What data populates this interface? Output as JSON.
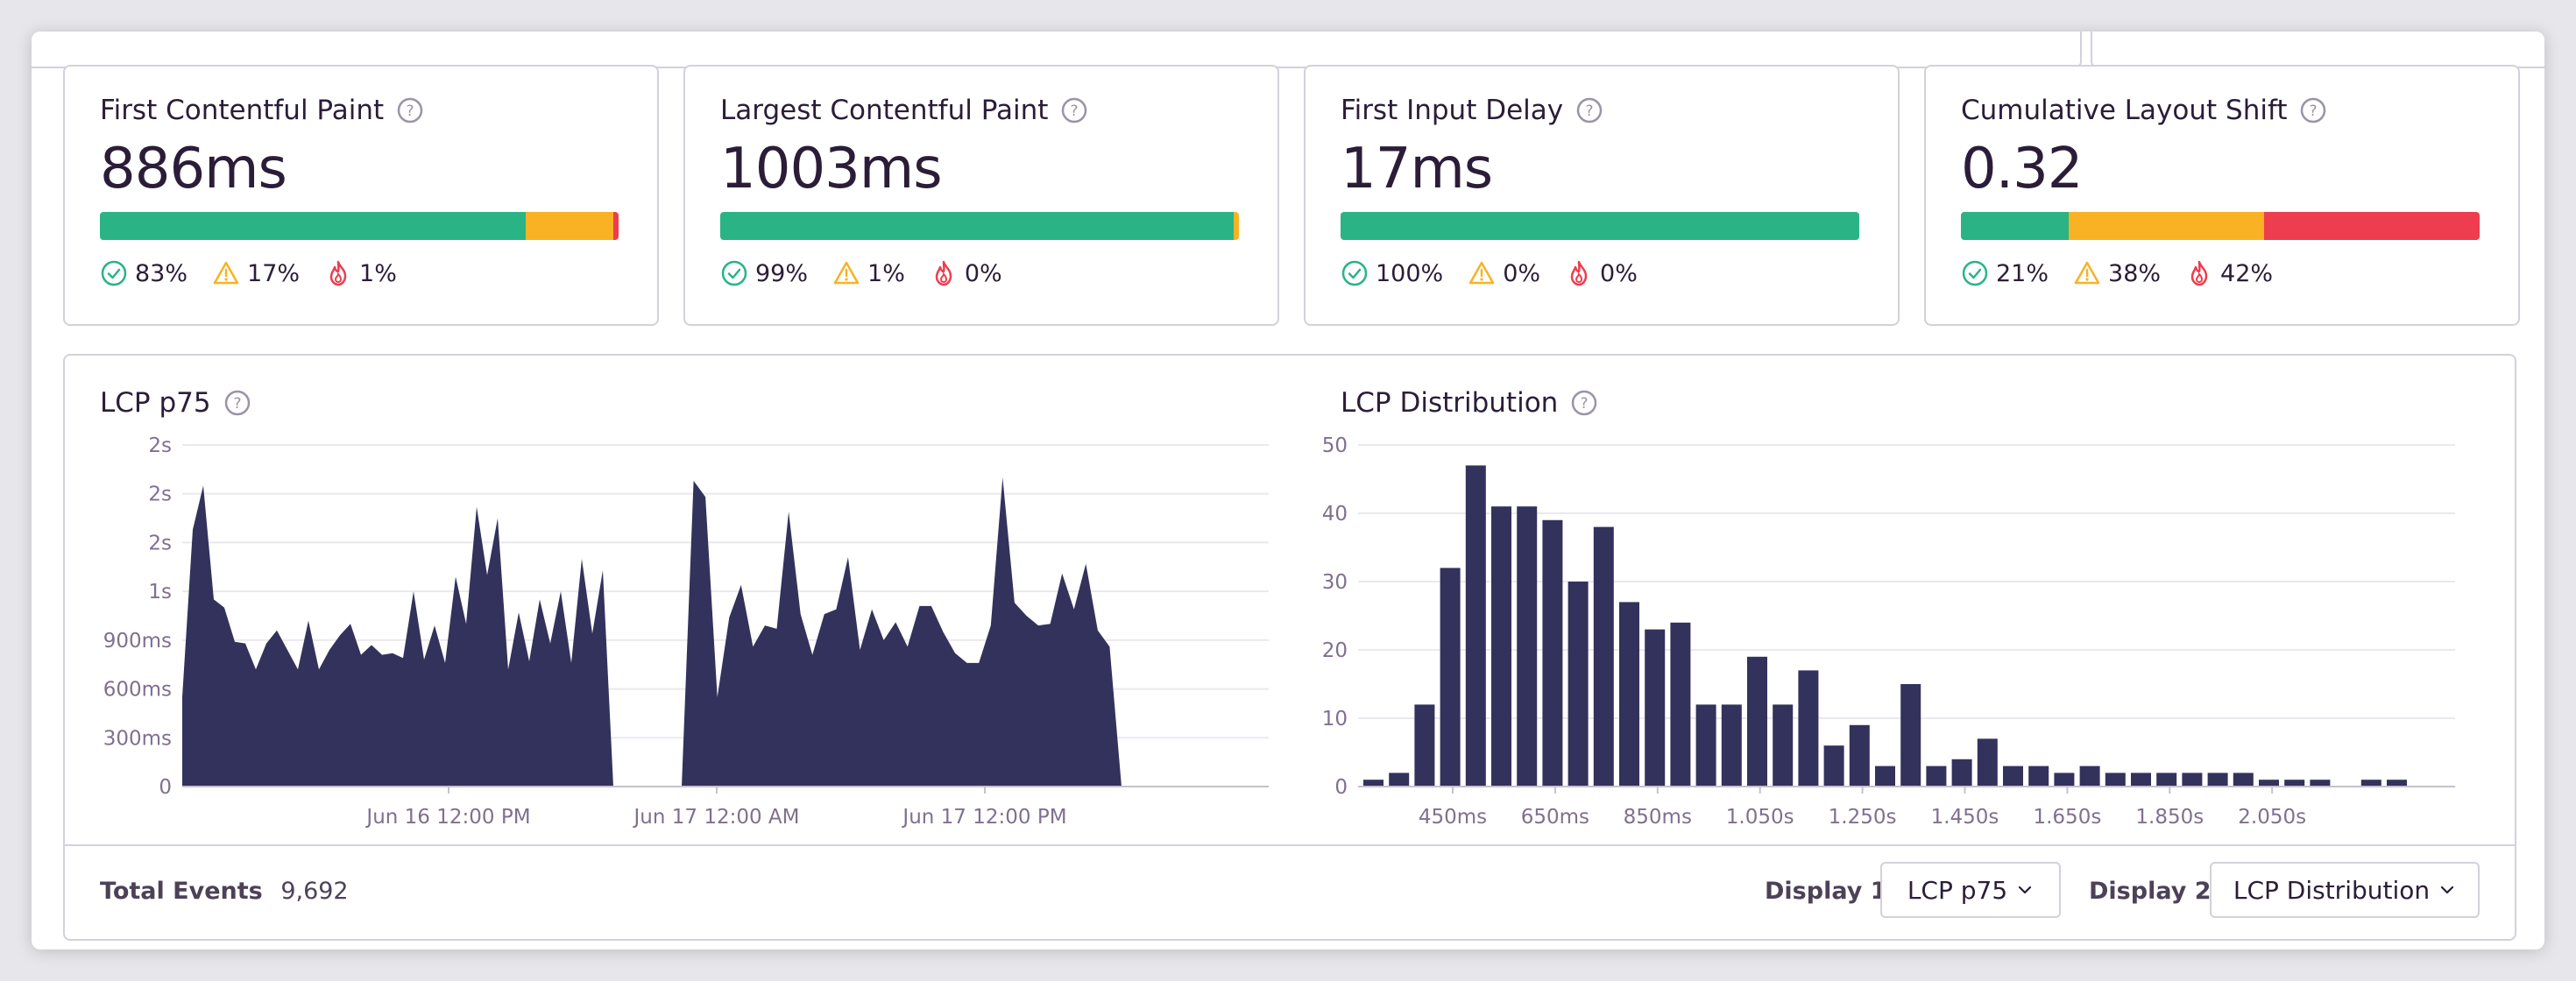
{
  "colors": {
    "good": "#2ab485",
    "meh": "#f9b224",
    "poor": "#ee3d4e",
    "bar": "#33325c",
    "grid": "#ebe8ef",
    "axis_text": "#80708f"
  },
  "metrics": [
    {
      "title": "First Contentful Paint",
      "value": "886ms",
      "good_pct": 83,
      "meh_pct": 17,
      "poor_pct": 1,
      "good_label": "83%",
      "meh_label": "17%",
      "poor_label": "1%"
    },
    {
      "title": "Largest Contentful Paint",
      "value": "1003ms",
      "good_pct": 99,
      "meh_pct": 1,
      "poor_pct": 0,
      "good_label": "99%",
      "meh_label": "1%",
      "poor_label": "0%"
    },
    {
      "title": "First Input Delay",
      "value": "17ms",
      "good_pct": 100,
      "meh_pct": 0,
      "poor_pct": 0,
      "good_label": "100%",
      "meh_label": "0%",
      "poor_label": "0%"
    },
    {
      "title": "Cumulative Layout Shift",
      "value": "0.32",
      "good_pct": 21,
      "meh_pct": 38,
      "poor_pct": 42,
      "good_label": "21%",
      "meh_label": "38%",
      "poor_label": "42%"
    }
  ],
  "chart_data": [
    {
      "type": "area",
      "title": "LCP p75",
      "y_tick_labels": [
        "0",
        "300ms",
        "600ms",
        "900ms",
        "1s",
        "2s",
        "2s",
        "2s"
      ],
      "x_tick_labels": [
        "Jun 16 12:00 PM",
        "Jun 17 12:00 AM",
        "Jun 17 12:00 PM"
      ],
      "series": [
        {
          "segment": 1,
          "values": [
            550,
            1580,
            1850,
            1150,
            1100,
            890,
            880,
            720,
            880,
            960,
            840,
            720,
            1020,
            720,
            840,
            930,
            1000,
            810,
            870,
            810,
            820,
            790,
            1200,
            780,
            990,
            760,
            1290,
            1000,
            1720,
            1300,
            1650,
            720,
            1070,
            770,
            1150,
            880,
            1200,
            760,
            1400,
            940,
            1330,
            0
          ]
        },
        {
          "segment": 2,
          "values": [
            0,
            1880,
            1780,
            550,
            1040,
            1240,
            860,
            990,
            970,
            1690,
            1060,
            810,
            1060,
            1090,
            1410,
            840,
            1090,
            900,
            1010,
            860,
            1110,
            1110,
            950,
            820,
            760,
            760,
            990,
            1900,
            1130,
            1050,
            990,
            1000,
            1310,
            1090,
            1370,
            960,
            860,
            0
          ]
        }
      ]
    },
    {
      "type": "bar",
      "title": "LCP Distribution",
      "y_tick_labels": [
        "0",
        "10",
        "20",
        "30",
        "40",
        "50"
      ],
      "x_tick_labels": [
        "450ms",
        "650ms",
        "850ms",
        "1.050s",
        "1.250s",
        "1.450s",
        "1.650s",
        "1.850s",
        "2.050s"
      ],
      "ylim": [
        0,
        50
      ],
      "values": [
        1,
        2,
        12,
        32,
        47,
        41,
        41,
        39,
        30,
        38,
        27,
        23,
        24,
        12,
        12,
        19,
        12,
        17,
        6,
        9,
        3,
        15,
        3,
        4,
        7,
        3,
        3,
        2,
        3,
        2,
        2,
        2,
        2,
        2,
        2,
        1,
        1,
        1,
        0,
        1,
        1
      ]
    }
  ],
  "footer": {
    "total_events_label": "Total Events",
    "total_events_value": "9,692",
    "display1_label": "Display 1",
    "display1_value": "LCP p75",
    "display2_label": "Display 2",
    "display2_value": "LCP Distribution"
  }
}
